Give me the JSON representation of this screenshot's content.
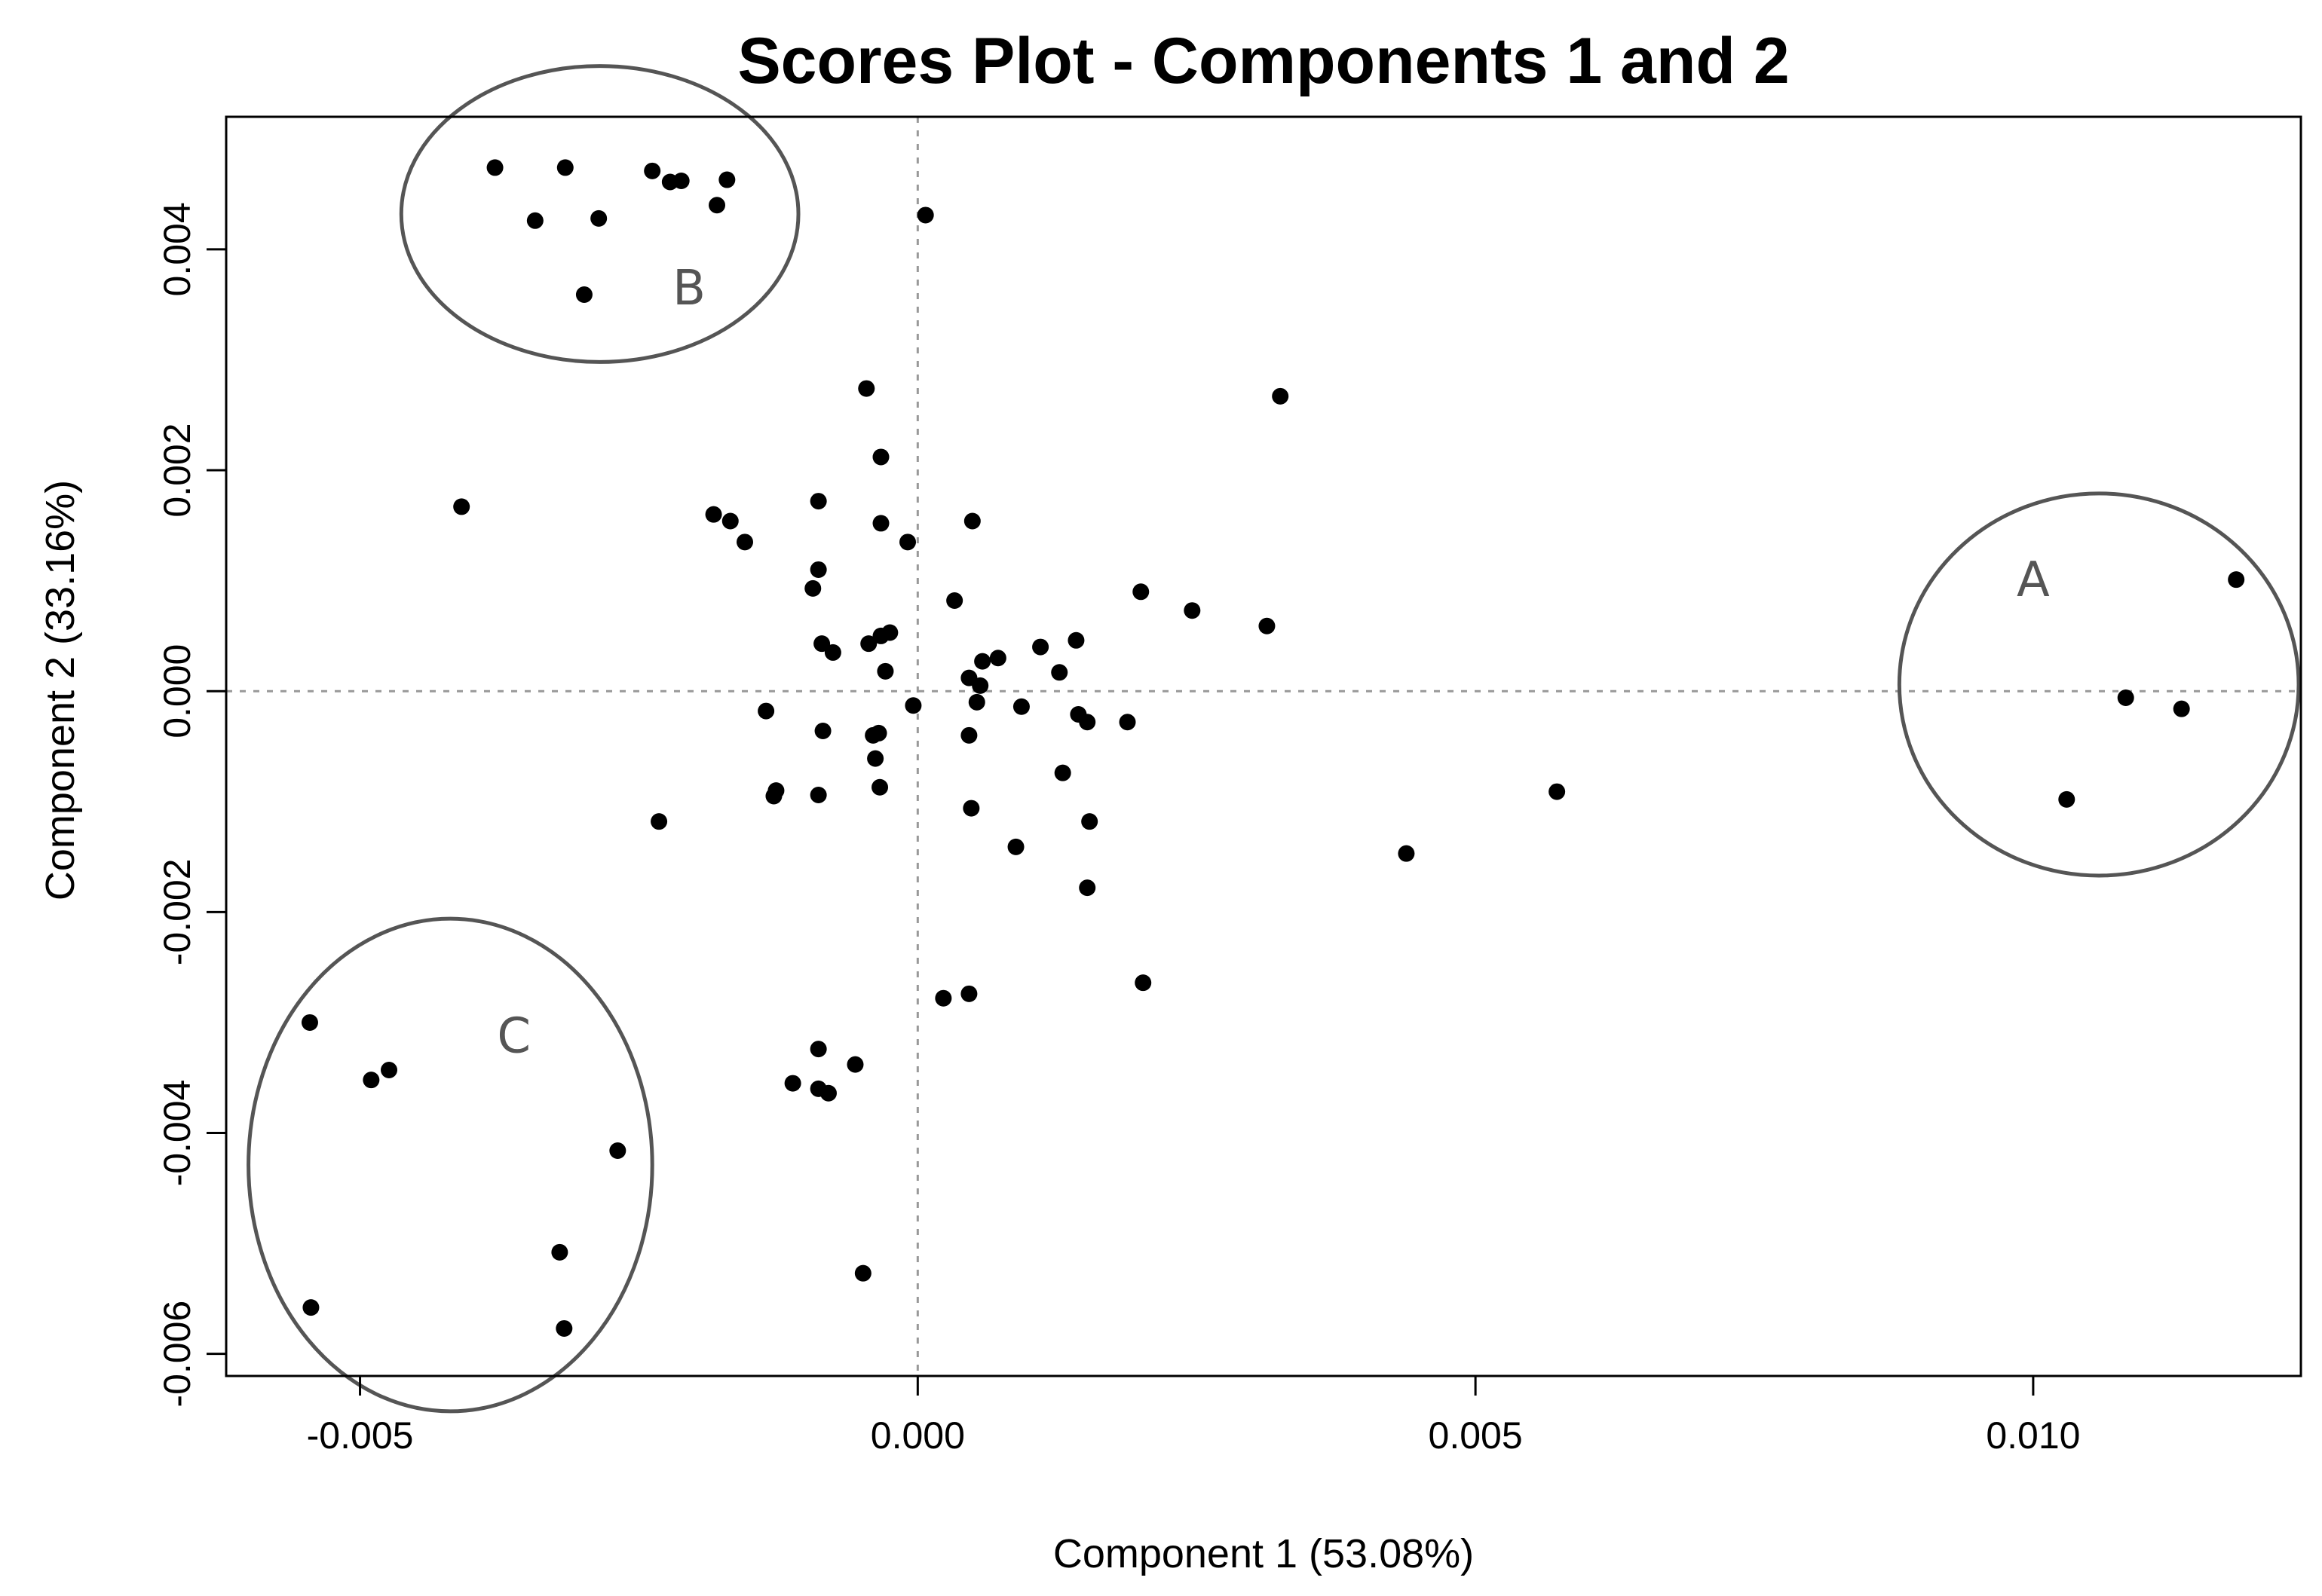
{
  "chart_data": {
    "type": "scatter",
    "title": "Scores Plot - Components 1 and 2",
    "xlabel": "Component 1 (53.08%)",
    "ylabel": "Component 2 (33.16%)",
    "xlim": [
      -0.0062,
      0.0124
    ],
    "ylim": [
      -0.0062,
      0.0052
    ],
    "xticks": [
      -0.005,
      0.0,
      0.005,
      0.01
    ],
    "xtick_labels": [
      "-0.005",
      "0.000",
      "0.005",
      "0.010"
    ],
    "yticks": [
      -0.006,
      -0.004,
      -0.002,
      0.0,
      0.002,
      0.004
    ],
    "ytick_labels": [
      "-0.006",
      "-0.004",
      "-0.002",
      "0.000",
      "0.002",
      "0.004"
    ],
    "reference_lines": {
      "x": 0.0,
      "y": 0.0,
      "style": "dotted"
    },
    "marker_color": "#000000",
    "points": [
      {
        "x": -0.00379,
        "y": 0.00474
      },
      {
        "x": -0.00316,
        "y": 0.00474
      },
      {
        "x": -0.00238,
        "y": 0.00471
      },
      {
        "x": -0.00222,
        "y": 0.00461
      },
      {
        "x": -0.00212,
        "y": 0.00462
      },
      {
        "x": -0.00171,
        "y": 0.00463
      },
      {
        "x": -0.0018,
        "y": 0.0044
      },
      {
        "x": -0.00343,
        "y": 0.00426
      },
      {
        "x": -0.00286,
        "y": 0.00428
      },
      {
        "x": -0.00299,
        "y": 0.00359
      },
      {
        "x": 7e-05,
        "y": 0.00431
      },
      {
        "x": -0.00046,
        "y": 0.00274
      },
      {
        "x": 0.00325,
        "y": 0.00267
      },
      {
        "x": -0.00033,
        "y": 0.00212
      },
      {
        "x": -0.00409,
        "y": 0.00167
      },
      {
        "x": -0.00183,
        "y": 0.0016
      },
      {
        "x": -0.00168,
        "y": 0.00154
      },
      {
        "x": -0.00155,
        "y": 0.00135
      },
      {
        "x": -0.00089,
        "y": 0.00172
      },
      {
        "x": -0.00033,
        "y": 0.00152
      },
      {
        "x": 0.00049,
        "y": 0.00154
      },
      {
        "x": -9e-05,
        "y": 0.00135
      },
      {
        "x": -0.00089,
        "y": 0.0011
      },
      {
        "x": -0.00094,
        "y": 0.00093
      },
      {
        "x": 0.00033,
        "y": 0.00082
      },
      {
        "x": 0.002,
        "y": 0.0009
      },
      {
        "x": 0.00246,
        "y": 0.00073
      },
      {
        "x": 0.00313,
        "y": 0.00059
      },
      {
        "x": -0.00025,
        "y": 0.00053
      },
      {
        "x": -0.00033,
        "y": 0.0005
      },
      {
        "x": -0.00044,
        "y": 0.00043
      },
      {
        "x": -0.00086,
        "y": 0.00043
      },
      {
        "x": -0.00076,
        "y": 0.00035
      },
      {
        "x": 0.00142,
        "y": 0.00046
      },
      {
        "x": 0.0011,
        "y": 0.0004
      },
      {
        "x": 0.00072,
        "y": 0.0003
      },
      {
        "x": 0.00058,
        "y": 0.00027
      },
      {
        "x": -0.00029,
        "y": 0.00018
      },
      {
        "x": 0.00127,
        "y": 0.00017
      },
      {
        "x": 0.00046,
        "y": 0.00012
      },
      {
        "x": 0.00056,
        "y": 5e-05
      },
      {
        "x": 0.00053,
        "y": -0.0001
      },
      {
        "x": -4e-05,
        "y": -0.00013
      },
      {
        "x": 0.00093,
        "y": -0.00014
      },
      {
        "x": -0.00136,
        "y": -0.00018
      },
      {
        "x": 0.00144,
        "y": -0.00021
      },
      {
        "x": 0.00152,
        "y": -0.00028
      },
      {
        "x": 0.00188,
        "y": -0.00028
      },
      {
        "x": -0.00085,
        "y": -0.00036
      },
      {
        "x": -0.0004,
        "y": -0.0004
      },
      {
        "x": -0.00035,
        "y": -0.00038
      },
      {
        "x": 0.00046,
        "y": -0.0004
      },
      {
        "x": -0.00038,
        "y": -0.00061
      },
      {
        "x": 0.0013,
        "y": -0.00074
      },
      {
        "x": -0.00127,
        "y": -0.0009
      },
      {
        "x": -0.00129,
        "y": -0.00095
      },
      {
        "x": -0.00089,
        "y": -0.00094
      },
      {
        "x": -0.00034,
        "y": -0.00087
      },
      {
        "x": 0.00048,
        "y": -0.00106
      },
      {
        "x": 0.00154,
        "y": -0.00118
      },
      {
        "x": -0.00232,
        "y": -0.00118
      },
      {
        "x": 0.00088,
        "y": -0.00141
      },
      {
        "x": 0.00152,
        "y": -0.00178
      },
      {
        "x": 0.00438,
        "y": -0.00147
      },
      {
        "x": 0.00573,
        "y": -0.00091
      },
      {
        "x": 0.00202,
        "y": -0.00264
      },
      {
        "x": 0.00023,
        "y": -0.00278
      },
      {
        "x": 0.00046,
        "y": -0.00274
      },
      {
        "x": -0.00089,
        "y": -0.00324
      },
      {
        "x": -0.00056,
        "y": -0.00338
      },
      {
        "x": -0.00112,
        "y": -0.00355
      },
      {
        "x": -0.00089,
        "y": -0.0036
      },
      {
        "x": -0.0008,
        "y": -0.00364
      },
      {
        "x": -0.00049,
        "y": -0.00527
      },
      {
        "x": -0.00545,
        "y": -0.003
      },
      {
        "x": -0.00474,
        "y": -0.00343
      },
      {
        "x": -0.0049,
        "y": -0.00352
      },
      {
        "x": -0.00269,
        "y": -0.00416
      },
      {
        "x": -0.00321,
        "y": -0.00508
      },
      {
        "x": -0.00544,
        "y": -0.00558
      },
      {
        "x": -0.00317,
        "y": -0.00577
      },
      {
        "x": 0.01182,
        "y": 0.00101
      },
      {
        "x": 0.01083,
        "y": -6e-05
      },
      {
        "x": 0.01133,
        "y": -0.00016
      },
      {
        "x": 0.0103,
        "y": -0.00098
      }
    ],
    "annotations": [
      {
        "label": "A",
        "cx": 0.01059,
        "cy": 6e-05,
        "rx": 0.00179,
        "ry": 0.00173,
        "label_x": 0.01,
        "label_y": 0.00098
      },
      {
        "label": "B",
        "cx": -0.00285,
        "cy": 0.00432,
        "rx": 0.00178,
        "ry": 0.00134,
        "label_x": -0.00205,
        "label_y": 0.00362
      },
      {
        "label": "C",
        "cx": -0.00419,
        "cy": -0.00429,
        "rx": 0.00181,
        "ry": 0.00223,
        "label_x": -0.00362,
        "label_y": -0.00315
      }
    ],
    "annotation_color": "#555555"
  }
}
